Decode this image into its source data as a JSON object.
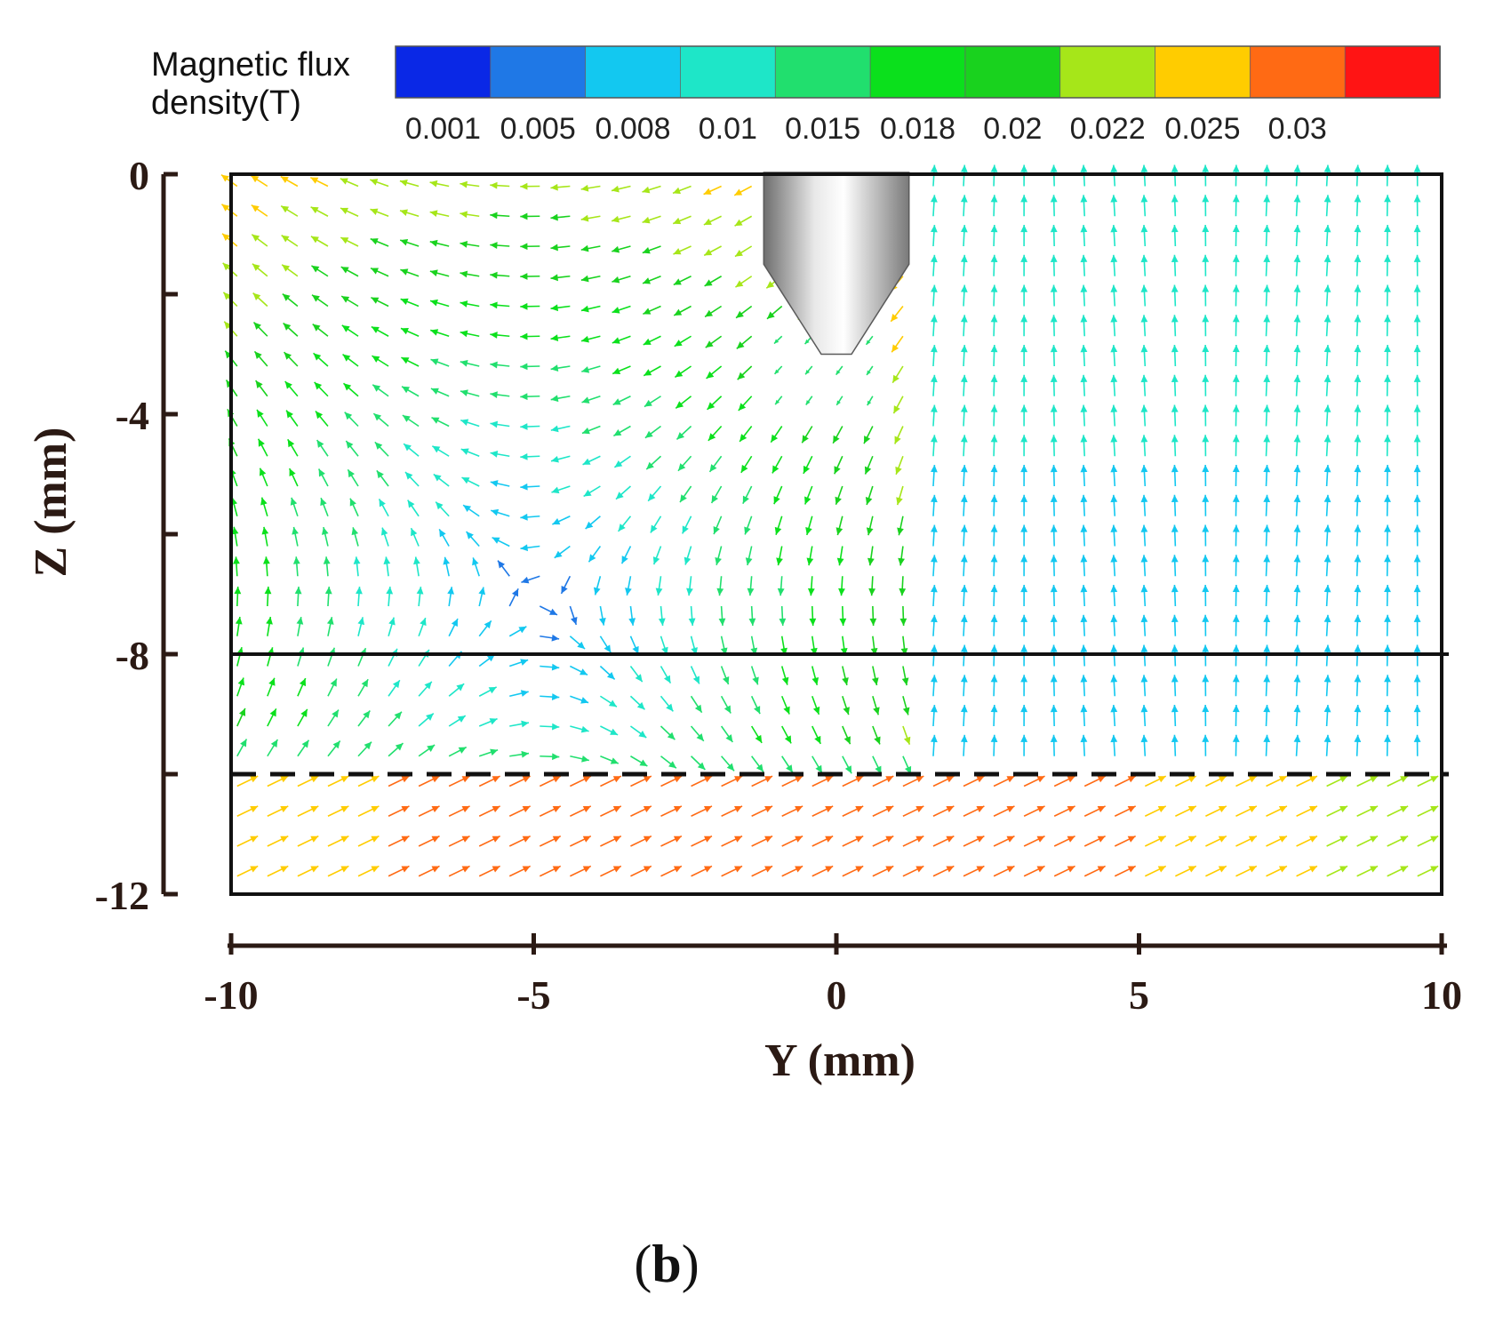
{
  "chart_data": {
    "type": "vector_field",
    "colorbar": {
      "title_line1": "Magnetic flux",
      "title_line2": "density(T)",
      "colors": [
        "#0a28e6",
        "#1f78e6",
        "#13c8f0",
        "#1ee6c8",
        "#21df6e",
        "#0be01c",
        "#19d21e",
        "#a6e619",
        "#ffcc00",
        "#ff6a14",
        "#ff1414"
      ],
      "tick_labels": [
        "0.001",
        "0.005",
        "0.008",
        "0.01",
        "0.015",
        "0.018",
        "0.02",
        "0.022",
        "0.025",
        "0.03"
      ]
    },
    "x_axis": {
      "title": "Y (mm)",
      "range": [
        -10,
        10
      ],
      "ticks": [
        -10,
        -5,
        0,
        5,
        10
      ],
      "tick_labels": [
        "-10",
        "-5",
        "0",
        "5",
        "10"
      ]
    },
    "y_axis": {
      "title": "Z (mm)",
      "range": [
        -12,
        0
      ],
      "ticks": [
        0,
        -2,
        -4,
        -6,
        -8,
        -10,
        -12
      ],
      "tick_labels": [
        "0",
        "-4",
        "-8",
        "-12"
      ],
      "labeled_ticks": [
        0,
        -4,
        -8,
        -12
      ]
    },
    "reference_lines": [
      {
        "z": -8,
        "style": "solid"
      },
      {
        "z": -10,
        "style": "dashed"
      }
    ],
    "electrode": {
      "y_center": 0,
      "half_width": 1.2,
      "cylinder_bottom_z": -1.5,
      "tip_z": -3.0,
      "tip_half_width": 0.25
    },
    "panel_label": {
      "open": "(",
      "letter": "b",
      "close": ")"
    }
  }
}
